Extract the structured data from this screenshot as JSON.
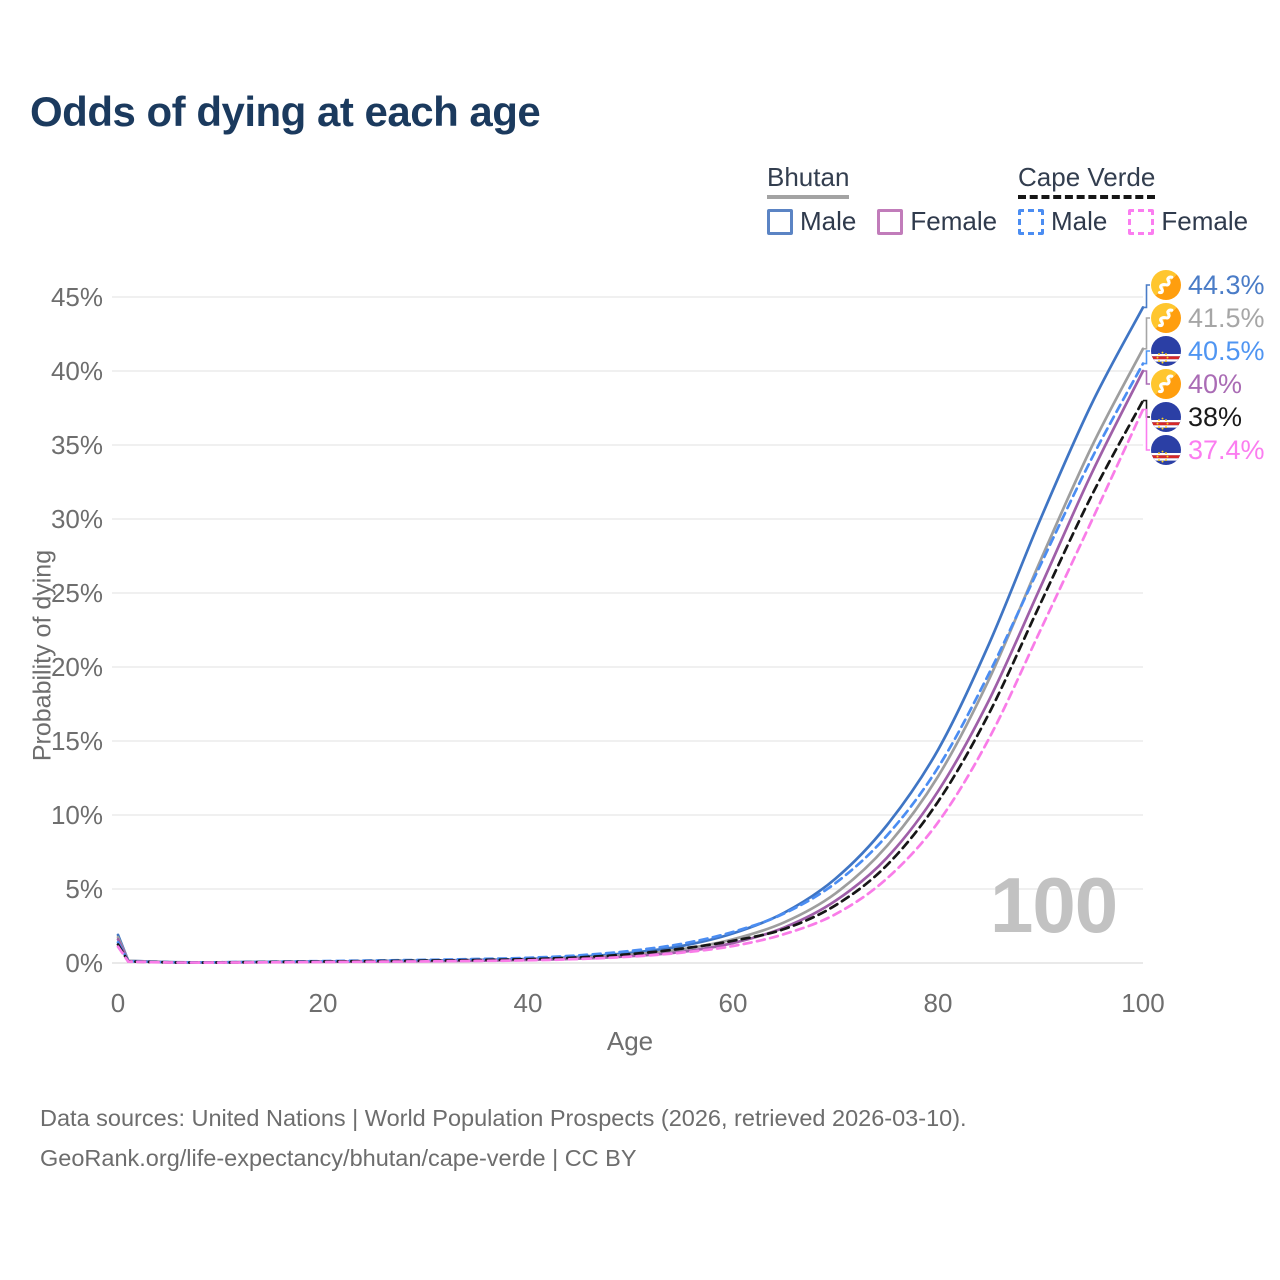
{
  "title": "Odds of dying at each age",
  "watermark": "100",
  "legend": {
    "groups": [
      {
        "name": "Bhutan",
        "underline_style": "solid",
        "underline_color": "#a3a3a3",
        "items": [
          {
            "label": "Male",
            "color": "#5b84c4",
            "dashed": false
          },
          {
            "label": "Female",
            "color": "#c17cba",
            "dashed": false
          }
        ]
      },
      {
        "name": "Cape Verde",
        "underline_style": "dashed",
        "underline_color": "#161616",
        "items": [
          {
            "label": "Male",
            "color": "#4b8df2",
            "dashed": true
          },
          {
            "label": "Female",
            "color": "#fb7df0",
            "dashed": true
          }
        ]
      }
    ]
  },
  "chart_data": {
    "type": "line",
    "title": "Odds of dying at each age",
    "xlabel": "Age",
    "ylabel": "Probability of dying",
    "xlim": [
      0,
      100
    ],
    "ylim": [
      0,
      45
    ],
    "grid": "horizontal",
    "legend_position": "top-right",
    "x_ticks": [
      0,
      20,
      40,
      60,
      80,
      100
    ],
    "y_tick_values": [
      0,
      5,
      10,
      15,
      20,
      25,
      30,
      35,
      40,
      45
    ],
    "y_tick_labels": [
      "0%",
      "5%",
      "10%",
      "15%",
      "20%",
      "25%",
      "30%",
      "35%",
      "40%",
      "45%"
    ],
    "x": [
      0,
      1,
      5,
      10,
      15,
      20,
      25,
      30,
      35,
      40,
      45,
      50,
      55,
      60,
      65,
      70,
      75,
      80,
      85,
      90,
      95,
      100
    ],
    "series": [
      {
        "name": "Bhutan Male",
        "color": "#3f75c4",
        "dash": null,
        "values": [
          1.9,
          0.15,
          0.06,
          0.05,
          0.08,
          0.1,
          0.13,
          0.16,
          0.2,
          0.27,
          0.42,
          0.68,
          1.15,
          2.0,
          3.4,
          5.7,
          9.3,
          14.4,
          21.6,
          30.0,
          37.8,
          44.3
        ]
      },
      {
        "name": "Bhutan Both sexes",
        "color": "#9e9e9e",
        "dash": null,
        "values": [
          1.75,
          0.14,
          0.055,
          0.045,
          0.07,
          0.09,
          0.11,
          0.14,
          0.17,
          0.23,
          0.35,
          0.56,
          0.93,
          1.6,
          2.75,
          4.7,
          7.9,
          12.6,
          19.2,
          27.2,
          34.9,
          41.5
        ]
      },
      {
        "name": "Bhutan Female",
        "color": "#9f5fa8",
        "dash": null,
        "values": [
          1.6,
          0.12,
          0.05,
          0.04,
          0.06,
          0.08,
          0.1,
          0.12,
          0.15,
          0.2,
          0.29,
          0.46,
          0.75,
          1.35,
          2.4,
          4.2,
          7.1,
          11.6,
          17.8,
          25.4,
          33.1,
          40.0
        ]
      },
      {
        "name": "Cape Verde Male",
        "color": "#4b8df2",
        "dash": "8 5.5",
        "values": [
          1.4,
          0.12,
          0.05,
          0.045,
          0.09,
          0.13,
          0.17,
          0.21,
          0.27,
          0.35,
          0.52,
          0.82,
          1.3,
          2.1,
          3.35,
          5.4,
          8.6,
          13.2,
          19.6,
          26.9,
          34.1,
          40.5
        ]
      },
      {
        "name": "Cape Verde Both sexes",
        "color": "#161616",
        "dash": "8 5.5",
        "values": [
          1.25,
          0.1,
          0.04,
          0.035,
          0.07,
          0.1,
          0.13,
          0.16,
          0.2,
          0.26,
          0.38,
          0.6,
          0.97,
          1.5,
          2.3,
          3.9,
          6.6,
          10.9,
          16.9,
          24.3,
          31.6,
          38.0
        ]
      },
      {
        "name": "Cape Verde Female",
        "color": "#f97ce8",
        "dash": "8 5.5",
        "values": [
          1.1,
          0.09,
          0.035,
          0.03,
          0.05,
          0.07,
          0.09,
          0.11,
          0.14,
          0.18,
          0.27,
          0.43,
          0.7,
          1.15,
          1.95,
          3.3,
          5.7,
          9.5,
          15.2,
          22.5,
          29.9,
          37.4
        ]
      }
    ],
    "end_labels": [
      {
        "text": "44.3%",
        "value": 44.3,
        "color": "#4a7cc7",
        "flag": "bhutan",
        "series": "Bhutan Male"
      },
      {
        "text": "41.5%",
        "value": 41.5,
        "color": "#a6a6a6",
        "flag": "bhutan",
        "series": "Bhutan Both sexes"
      },
      {
        "text": "40.5%",
        "value": 40.5,
        "color": "#4f95f2",
        "flag": "cape-verde",
        "series": "Cape Verde Male"
      },
      {
        "text": "40%",
        "value": 40.0,
        "color": "#aa6cb5",
        "flag": "bhutan",
        "series": "Bhutan Female"
      },
      {
        "text": "38%",
        "value": 38.0,
        "color": "#1a1a1a",
        "flag": "cape-verde",
        "series": "Cape Verde Both sexes"
      },
      {
        "text": "37.4%",
        "value": 37.4,
        "color": "#fb7df0",
        "flag": "cape-verde",
        "series": "Cape Verde Female"
      }
    ]
  },
  "footer": {
    "line1": "Data sources: United Nations | World Population Prospects (2026, retrieved 2026-03-10).",
    "line2": "GeoRank.org/life-expectancy/bhutan/cape-verde | CC BY"
  }
}
